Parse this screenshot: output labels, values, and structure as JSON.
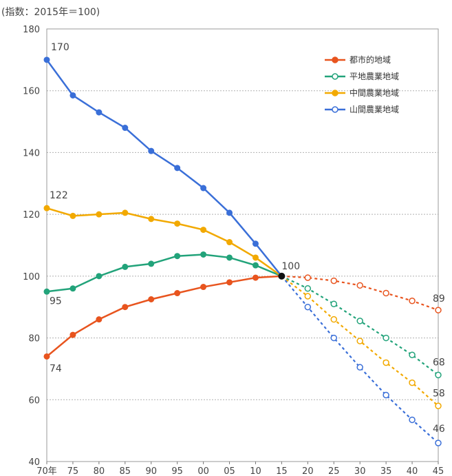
{
  "chart_data": {
    "type": "line",
    "unit_label": "(指数：2015年＝100)",
    "x_ticks": [
      "70年",
      "75",
      "80",
      "85",
      "90",
      "95",
      "00",
      "05",
      "10",
      "15",
      "20",
      "25",
      "30",
      "35",
      "40",
      "45"
    ],
    "ylim": [
      40,
      180
    ],
    "y_ticks": [
      40,
      60,
      80,
      100,
      120,
      140,
      160,
      180
    ],
    "grid": true,
    "legend_position": "top-right",
    "series": [
      {
        "name": "都市的地域",
        "color": "#e8541e",
        "actual": [
          74,
          81,
          86,
          90,
          92.5,
          94.5,
          96.5,
          98,
          99.5,
          100
        ],
        "projected": [
          100,
          99.5,
          98.5,
          97,
          94.5,
          92,
          89
        ]
      },
      {
        "name": "平地農業地域",
        "color": "#22a37a",
        "actual": [
          95,
          96,
          100,
          103,
          104,
          106.5,
          107,
          106,
          103.5,
          100
        ],
        "projected": [
          100,
          96,
          91,
          85.5,
          80,
          74.5,
          68
        ]
      },
      {
        "name": "中間農業地域",
        "color": "#f2a900",
        "actual": [
          122,
          119.5,
          120,
          120.5,
          118.5,
          117,
          115,
          111,
          106,
          100
        ],
        "projected": [
          100,
          93.5,
          86,
          79,
          72,
          65.5,
          58
        ]
      },
      {
        "name": "山間農業地域",
        "color": "#3a6fd8",
        "actual": [
          170,
          158.5,
          153,
          148,
          140.5,
          135,
          128.5,
          120.5,
          110.5,
          100
        ],
        "projected": [
          100,
          90,
          80,
          70.5,
          61.5,
          53.5,
          46
        ]
      }
    ],
    "annotations": [
      {
        "text": "170",
        "x": "70年",
        "y": 170
      },
      {
        "text": "122",
        "x": "70年",
        "y": 122
      },
      {
        "text": "95",
        "x": "70年",
        "y": 95
      },
      {
        "text": "74",
        "x": "70年",
        "y": 74
      },
      {
        "text": "100",
        "x": "15",
        "y": 100
      },
      {
        "text": "89",
        "x": "45",
        "y": 89
      },
      {
        "text": "68",
        "x": "45",
        "y": 68
      },
      {
        "text": "58",
        "x": "45",
        "y": 58
      },
      {
        "text": "46",
        "x": "45",
        "y": 46
      }
    ]
  }
}
